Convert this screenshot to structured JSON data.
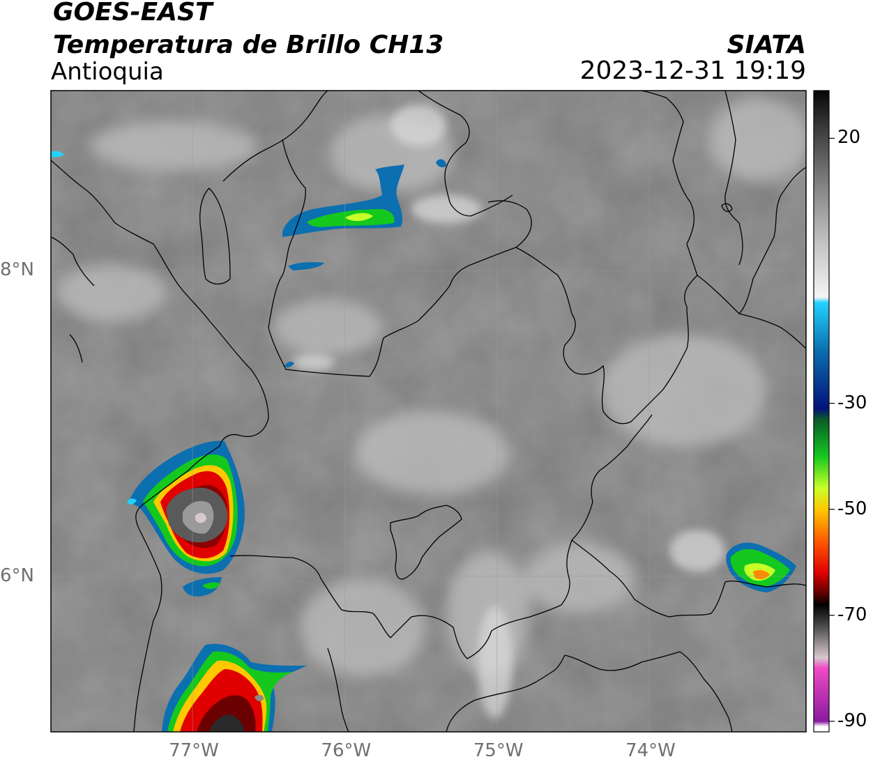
{
  "header": {
    "satellite": "GOES-EAST",
    "product": "Temperatura de Brillo CH13",
    "region": "Antioquia",
    "agency": "SIATA",
    "datetime": "2023-12-31 19:19"
  },
  "map": {
    "extent": {
      "lon": [
        -77.93,
        -72.97
      ],
      "lat": [
        4.98,
        9.18
      ]
    },
    "lon_ticks": [
      {
        "value": -77,
        "label": "77°W"
      },
      {
        "value": -76,
        "label": "76°W"
      },
      {
        "value": -75,
        "label": "75°W"
      },
      {
        "value": -74,
        "label": "74°W"
      }
    ],
    "lat_ticks": [
      {
        "value": 8,
        "label": "8°N"
      },
      {
        "value": 6,
        "label": "6°N"
      }
    ],
    "colors": {
      "background_gray": "#7c7c7c",
      "border": "#000000",
      "grid": "#9a9a9a"
    }
  },
  "colorbar": {
    "range": [
      -92,
      29
    ],
    "ticks": [
      {
        "value": 20,
        "label": "20"
      },
      {
        "value": -30,
        "label": "-30"
      },
      {
        "value": -50,
        "label": "-50"
      },
      {
        "value": -70,
        "label": "-70"
      },
      {
        "value": -90,
        "label": "-90"
      }
    ],
    "stops": [
      {
        "value": 29,
        "color": "#050505"
      },
      {
        "value": 22,
        "color": "#3a3a3a"
      },
      {
        "value": 10,
        "color": "#8a8a8a"
      },
      {
        "value": 0,
        "color": "#c4c4c4"
      },
      {
        "value": -10,
        "color": "#f4f4f4"
      },
      {
        "value": -11,
        "color": "#23d2ff"
      },
      {
        "value": -20,
        "color": "#0b6fb0"
      },
      {
        "value": -31,
        "color": "#03127a"
      },
      {
        "value": -33,
        "color": "#0a5a2a"
      },
      {
        "value": -40,
        "color": "#14c81e"
      },
      {
        "value": -46,
        "color": "#c8ff28"
      },
      {
        "value": -50,
        "color": "#ffc800"
      },
      {
        "value": -56,
        "color": "#ff5a00"
      },
      {
        "value": -62,
        "color": "#e00000"
      },
      {
        "value": -66,
        "color": "#5a0000"
      },
      {
        "value": -68,
        "color": "#000000"
      },
      {
        "value": -72,
        "color": "#4a4a4a"
      },
      {
        "value": -78,
        "color": "#d8c8d0"
      },
      {
        "value": -80,
        "color": "#f04ac4"
      },
      {
        "value": -90,
        "color": "#8a1aa0"
      },
      {
        "value": -91,
        "color": "#ffffff"
      }
    ]
  }
}
